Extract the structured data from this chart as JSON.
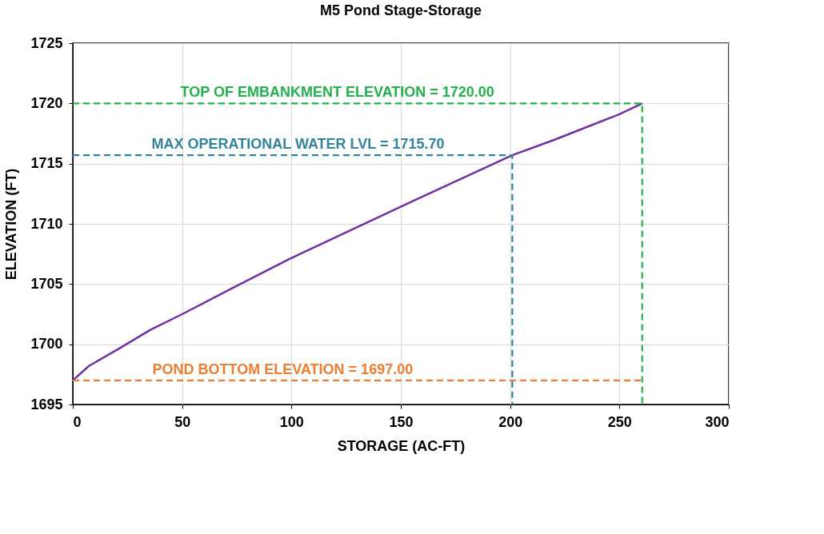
{
  "chart_data": {
    "type": "line",
    "title": "M5 Pond Stage-Storage",
    "xlabel": "STORAGE (AC-FT)",
    "ylabel": "ELEVATION (FT)",
    "xlim": [
      0,
      300
    ],
    "xticks": [
      0,
      50,
      100,
      150,
      200,
      250,
      300
    ],
    "ylim": [
      1695,
      1725
    ],
    "yticks": [
      1695,
      1700,
      1705,
      1710,
      1715,
      1720,
      1725
    ],
    "grid": true,
    "line_style": "solid",
    "series": [
      {
        "color": "#7030a0",
        "x": [
          0,
          7.4,
          20.8,
          35.5,
          50,
          72.3,
          99.3,
          125,
          158,
          201,
          220.6,
          250,
          260.4
        ],
        "values": [
          1697,
          1698.2,
          1699.6,
          1701.2,
          1702.5,
          1704.6,
          1707.1,
          1709.3,
          1712.1,
          1715.7,
          1717.0,
          1719.1,
          1720
        ]
      },
      {
        "color": "#22b14c",
        "line_style": "dashed",
        "x": [
          0,
          260.4,
          260.4
        ],
        "values": [
          1720,
          1720,
          1695
        ]
      },
      {
        "color": "#31849b",
        "line_style": "dashed",
        "x": [
          0,
          201,
          201
        ],
        "values": [
          1715.7,
          1715.7,
          1695
        ]
      },
      {
        "color": "#ed7d31",
        "line_style": "dashed",
        "x": [
          0,
          260.4
        ],
        "values": [
          1697,
          1697
        ]
      }
    ],
    "annotations": [
      {
        "text": "TOP OF EMBANKMENT ELEVATION = 1720.00",
        "x": 121,
        "y": 1720
      },
      {
        "text": "MAX OPERATIONAL WATER LVL = 1715.70",
        "x": 103,
        "y": 1715.7
      },
      {
        "text": "POND BOTTOM ELEVATION = 1697.00",
        "x": 96,
        "y": 1697
      }
    ]
  }
}
